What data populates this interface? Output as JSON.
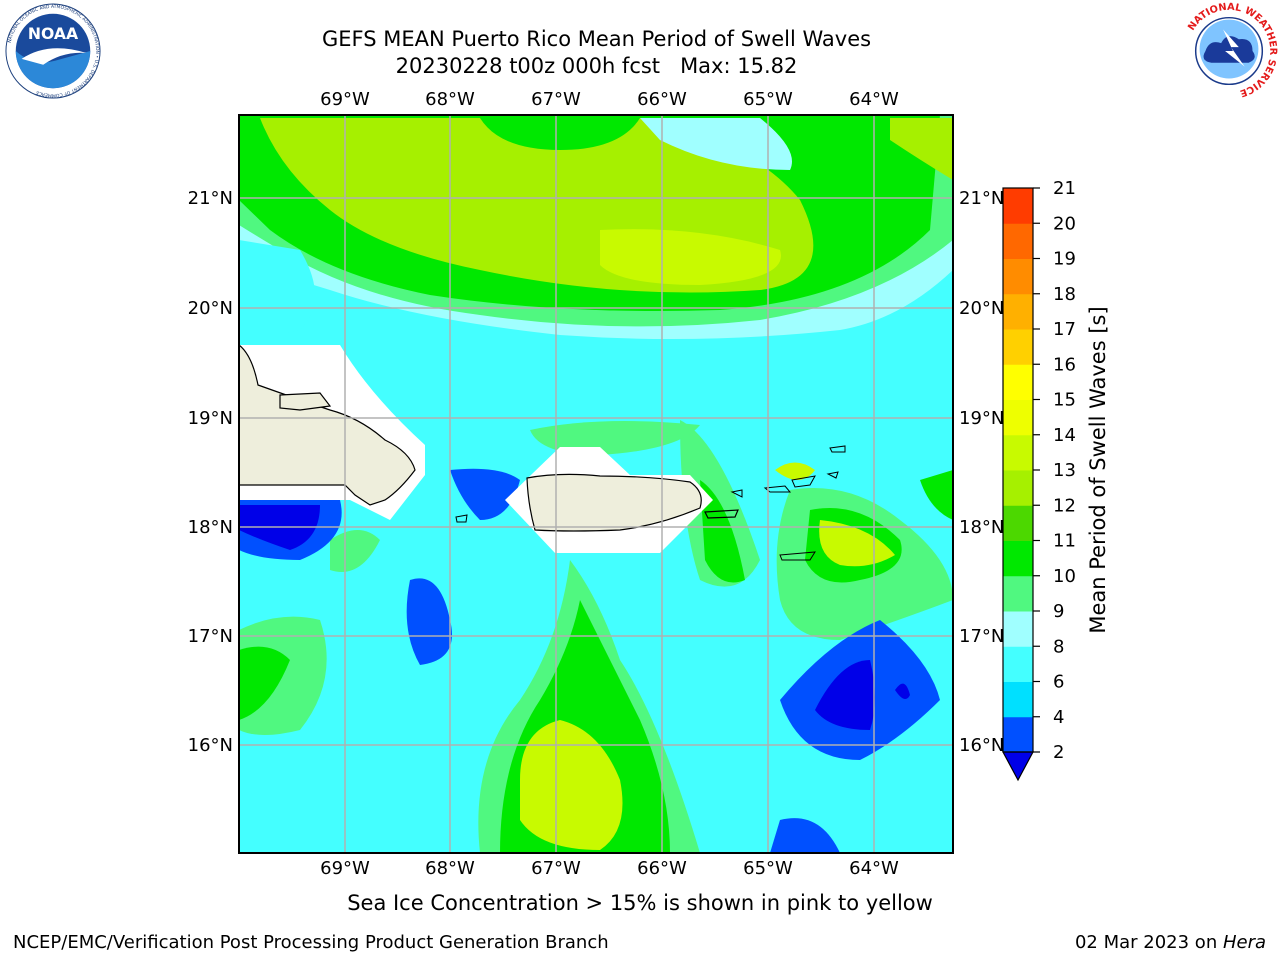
{
  "header": {
    "title_line1": "GEFS MEAN Puerto Rico Mean Period of Swell Waves",
    "title_line2": "20230228 t00z 000h fcst   Max: 15.82"
  },
  "logos": {
    "left": "NOAA",
    "left_ring_text": "NATIONAL OCEANIC AND ATMOSPHERIC ADMINISTRATION • U.S. DEPARTMENT OF COMMERCE",
    "right_ring_text": "NATIONAL WEATHER SERVICE"
  },
  "map": {
    "lon_labels": [
      "69°W",
      "68°W",
      "67°W",
      "66°W",
      "65°W",
      "64°W"
    ],
    "lat_labels": [
      "21°N",
      "20°N",
      "19°N",
      "18°N",
      "17°N",
      "16°N"
    ],
    "colors": {
      "land": "#eeeedc",
      "grid": "#b0b0b0",
      "mask": "#ffffff"
    }
  },
  "colorbar": {
    "label": "Mean Period of Swell Waves [s]",
    "ticks": [
      "2",
      "4",
      "6",
      "8",
      "9",
      "10",
      "11",
      "12",
      "13",
      "14",
      "15",
      "16",
      "17",
      "18",
      "19",
      "20",
      "21"
    ],
    "colors": [
      "#0050ff",
      "#00e0ff",
      "#44ffff",
      "#a0ffff",
      "#50f880",
      "#00e800",
      "#4cd800",
      "#a6f000",
      "#c8fa00",
      "#eeff00",
      "#ffff00",
      "#ffd000",
      "#ffb000",
      "#ff8c00",
      "#ff6800",
      "#ff3c00",
      "#ff0000"
    ],
    "extend_color": "#0000e8"
  },
  "caption": "Sea Ice Concentration > 15% is shown in pink to yellow",
  "footer": {
    "left": "NCEP/EMC/Verification Post Processing Product Generation Branch",
    "right_prefix": "02 Mar 2023 on ",
    "right_host": "Hera"
  }
}
